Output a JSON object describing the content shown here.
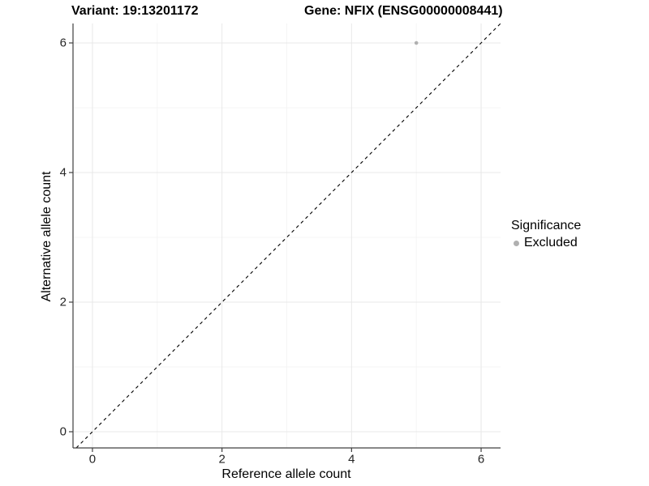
{
  "title": {
    "left": "Variant: 19:13201172",
    "right": "Gene: NFIX (ENSG00000008441)"
  },
  "chart_data": {
    "type": "scatter",
    "title": "Variant: 19:13201172    Gene: NFIX (ENSG00000008441)",
    "xlabel": "Reference allele count",
    "ylabel": "Alternative allele count",
    "xlim": [
      -0.3,
      6.3
    ],
    "ylim": [
      -0.25,
      6.3
    ],
    "xticks": [
      0,
      2,
      4,
      6
    ],
    "yticks": [
      0,
      2,
      4,
      6
    ],
    "x_minor_breaks": [
      1,
      3,
      5
    ],
    "y_minor_breaks": [
      1,
      3,
      5
    ],
    "grid": "major and minor, light gray on white",
    "legend_position": "right, vertically centered",
    "reference_line": {
      "kind": "identity y = x",
      "style": "dashed",
      "color": "#000000",
      "from": -0.25,
      "to": 6.3
    },
    "series": [
      {
        "name": "Excluded",
        "marker": "circle",
        "color": "#b0b0b0",
        "point_radius": 2.3,
        "points": [
          {
            "x": 5,
            "y": 6
          }
        ]
      }
    ],
    "style": {
      "axis_color": "#404040",
      "grid_major_color": "#e8e8e8",
      "grid_minor_color": "#f4f4f4",
      "background": "#ffffff"
    }
  },
  "legend": {
    "title": "Significance",
    "items": [
      {
        "label": "Excluded",
        "color": "#b0b0b0"
      }
    ]
  }
}
